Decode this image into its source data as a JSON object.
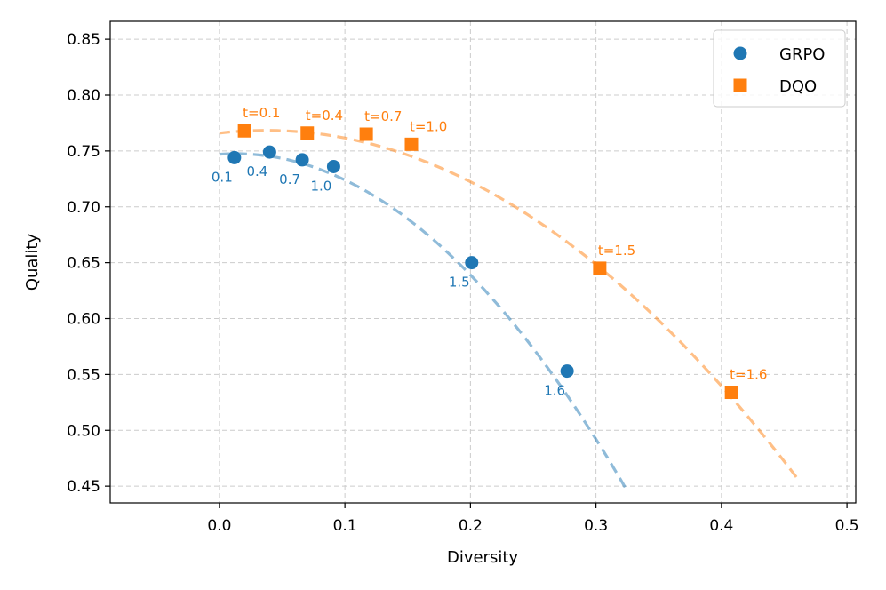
{
  "chart_data": {
    "type": "scatter",
    "title": "",
    "xlabel": "Diversity",
    "ylabel": "Quality",
    "xlim": [
      -0.087,
      0.507
    ],
    "ylim": [
      0.435,
      0.866
    ],
    "xticks": [
      0.0,
      0.1,
      0.2,
      0.3,
      0.4,
      0.5
    ],
    "xtick_labels": [
      "0.0",
      "0.1",
      "0.2",
      "0.3",
      "0.4",
      "0.5"
    ],
    "yticks": [
      0.45,
      0.5,
      0.55,
      0.6,
      0.65,
      0.7,
      0.75,
      0.8,
      0.85
    ],
    "ytick_labels": [
      "0.45",
      "0.50",
      "0.55",
      "0.60",
      "0.65",
      "0.70",
      "0.75",
      "0.80",
      "0.85"
    ],
    "grid": true,
    "legend_position": "top-right",
    "series": [
      {
        "name": "GRPO",
        "color": "#1f77b4",
        "marker": "circle",
        "x": [
          0.012,
          0.04,
          0.066,
          0.091,
          0.201,
          0.277
        ],
        "y": [
          0.744,
          0.749,
          0.742,
          0.736,
          0.65,
          0.553
        ],
        "point_labels": [
          "0.1",
          "0.4",
          "0.7",
          "1.0",
          "1.5",
          "1.6"
        ],
        "label_placement": "below-left",
        "fit_curve": {
          "x_range": [
            0.0,
            0.325
          ],
          "coeffs": [
            0.747,
            0.08,
            -3.1
          ]
        }
      },
      {
        "name": "DQO",
        "color": "#ff7f0e",
        "marker": "square",
        "x": [
          0.02,
          0.07,
          0.117,
          0.153,
          0.303,
          0.408
        ],
        "y": [
          0.768,
          0.766,
          0.765,
          0.756,
          0.645,
          0.534
        ],
        "point_labels": [
          "t=0.1",
          "t=0.4",
          "t=0.7",
          "t=1.0",
          "t=1.5",
          "t=1.6"
        ],
        "label_placement": "above",
        "fit_curve": {
          "x_range": [
            0.0,
            0.46
          ],
          "coeffs": [
            0.766,
            0.13,
            -1.74
          ]
        }
      }
    ]
  }
}
